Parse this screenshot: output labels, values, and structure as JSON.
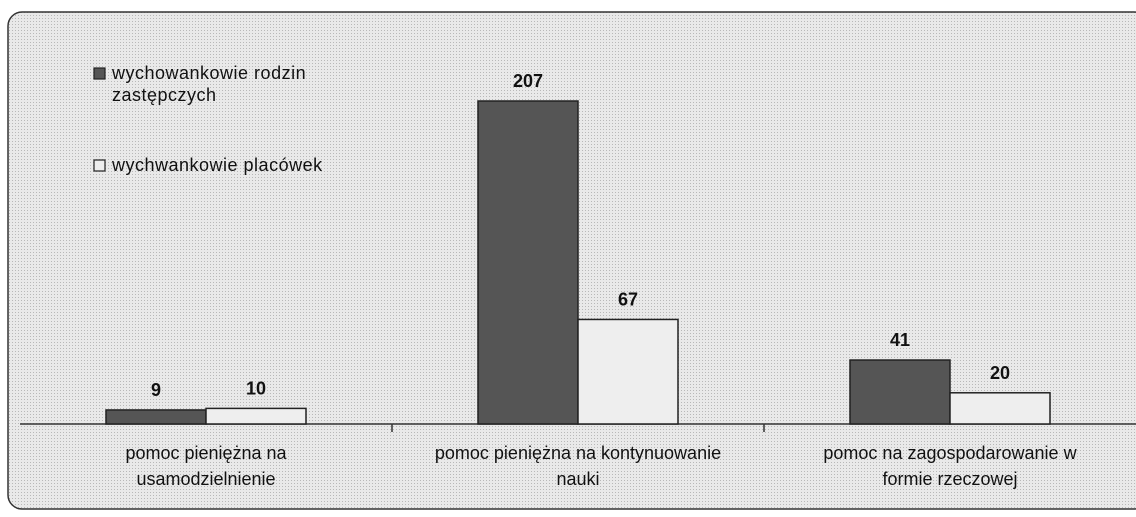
{
  "chart_data": {
    "type": "bar",
    "categories": [
      "pomoc pieniężna na usamodzielnienie",
      "pomoc pieniężna na kontynuowanie nauki",
      "pomoc na zagospodarowanie w formie rzeczowej"
    ],
    "series": [
      {
        "name": "wychowankowie rodzin zastępczych",
        "color": "#555555",
        "values": [
          9,
          207,
          41
        ]
      },
      {
        "name": "wychwankowie placówek",
        "color": "#eeeeee",
        "values": [
          10,
          67,
          20
        ]
      }
    ]
  }
}
